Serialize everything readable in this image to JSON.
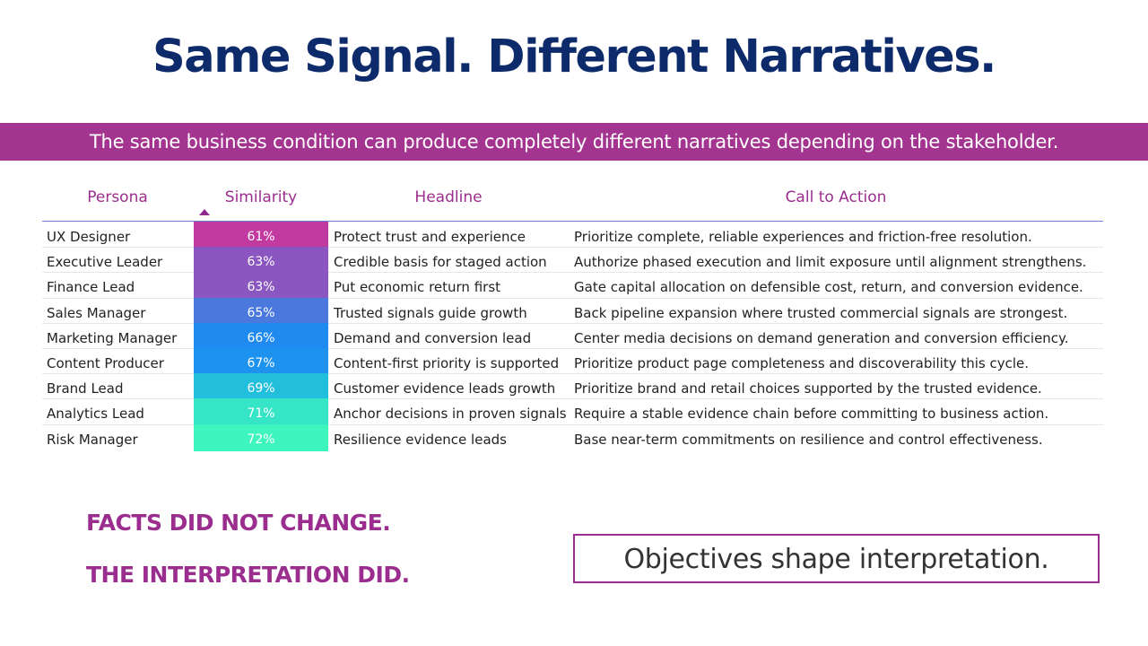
{
  "title": "Same Signal. Different Narratives.",
  "subtitle": "The same business condition can produce completely different narratives depending on the stakeholder.",
  "table": {
    "headers": {
      "persona": "Persona",
      "similarity": "Similarity",
      "headline": "Headline",
      "cta": "Call to Action"
    },
    "sort": {
      "column": "Similarity",
      "direction": "ascending"
    },
    "rows": [
      {
        "persona": "UX Designer",
        "similarity": "61%",
        "color": "#c13aa0",
        "headline": "Protect trust and experience",
        "cta": "Prioritize complete, reliable experiences and friction-free resolution."
      },
      {
        "persona": "Executive Leader",
        "similarity": "63%",
        "color": "#8c56c0",
        "headline": "Credible basis for staged action",
        "cta": "Authorize phased execution and limit exposure until alignment strengthens."
      },
      {
        "persona": "Finance Lead",
        "similarity": "63%",
        "color": "#8a57c1",
        "headline": "Put economic return first",
        "cta": "Gate capital allocation on defensible cost, return, and conversion evidence."
      },
      {
        "persona": "Sales Manager",
        "similarity": "65%",
        "color": "#4a78dd",
        "headline": "Trusted signals guide growth",
        "cta": "Back pipeline expansion where trusted commercial signals are strongest."
      },
      {
        "persona": "Marketing Manager",
        "similarity": "66%",
        "color": "#1f8af0",
        "headline": "Demand and conversion lead",
        "cta": "Center media decisions on demand generation and conversion efficiency."
      },
      {
        "persona": "Content Producer",
        "similarity": "67%",
        "color": "#1d92ee",
        "headline": "Content-first priority is supported",
        "cta": "Prioritize product page completeness and discoverability this cycle."
      },
      {
        "persona": "Brand Lead",
        "similarity": "69%",
        "color": "#22bfdc",
        "headline": "Customer evidence leads growth",
        "cta": "Prioritize brand and retail choices supported by the trusted evidence."
      },
      {
        "persona": "Analytics Lead",
        "similarity": "71%",
        "color": "#36e4c6",
        "headline": "Anchor decisions in proven signals",
        "cta": "Require a stable evidence chain before committing to business action."
      },
      {
        "persona": "Risk Manager",
        "similarity": "72%",
        "color": "#3ef5be",
        "headline": "Resilience evidence leads",
        "cta": "Base near-term commitments on resilience and control effectiveness."
      }
    ]
  },
  "facts": {
    "line1": "FACTS DID NOT CHANGE.",
    "line2": "THE INTERPRETATION DID."
  },
  "objective": "Objectives shape interpretation."
}
